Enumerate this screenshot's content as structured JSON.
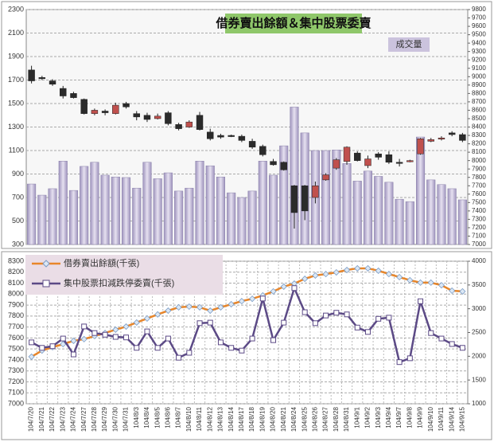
{
  "chart_data": [
    {
      "type": "combo",
      "title": "借券賣出餘額＆集中股票委賣",
      "categories": [
        "104/7/20",
        "104/7/21",
        "104/7/22",
        "104/7/23",
        "104/7/24",
        "104/7/27",
        "104/7/28",
        "104/7/29",
        "104/7/30",
        "104/7/31",
        "104/8/3",
        "104/8/4",
        "104/8/5",
        "104/8/6",
        "104/8/7",
        "104/8/10",
        "104/8/11",
        "104/8/12",
        "104/8/13",
        "104/8/14",
        "104/8/17",
        "104/8/18",
        "104/8/19",
        "104/8/20",
        "104/8/21",
        "104/8/24",
        "104/8/25",
        "104/8/26",
        "104/8/27",
        "104/8/28",
        "104/8/31",
        "104/9/1",
        "104/9/2",
        "104/9/3",
        "104/9/4",
        "104/9/7",
        "104/9/8",
        "104/9/9",
        "104/9/10",
        "104/9/11",
        "104/9/14",
        "104/9/15"
      ],
      "series": [
        {
          "name": "成交量",
          "type": "bar",
          "color": "#c8c0da",
          "values": [
            815,
            720,
            775,
            1010,
            760,
            965,
            1000,
            890,
            875,
            870,
            780,
            1000,
            860,
            910,
            755,
            780,
            1010,
            970,
            875,
            740,
            700,
            755,
            1010,
            890,
            1140,
            1470,
            1250,
            1100,
            1100,
            1105,
            990,
            840,
            925,
            880,
            830,
            685,
            665,
            1215,
            850,
            810,
            775,
            680
          ]
        },
        {
          "type": "candlestick",
          "axis": "y2",
          "up_color": "#c0504d",
          "down_color": "#2b2b2b",
          "open": [
            9080,
            8990,
            8950,
            8860,
            8800,
            8730,
            8560,
            8590,
            8560,
            8680,
            8560,
            8540,
            8500,
            8570,
            8430,
            8400,
            8540,
            8340,
            8300,
            8300,
            8290,
            8230,
            8170,
            7990,
            7980,
            7700,
            7700,
            7560,
            7770,
            7910,
            7990,
            8090,
            7940,
            8080,
            8070,
            7980,
            7990,
            8080,
            8230,
            8260,
            8330,
            8310
          ],
          "high": [
            9130,
            9010,
            8970,
            8890,
            8820,
            8740,
            8620,
            8610,
            8690,
            8700,
            8590,
            8570,
            8560,
            8590,
            8450,
            8480,
            8580,
            8380,
            8320,
            8310,
            8310,
            8260,
            8190,
            8020,
            7990,
            7710,
            7710,
            7750,
            7850,
            8030,
            8170,
            8110,
            8060,
            8100,
            8110,
            8020,
            8010,
            8270,
            8270,
            8290,
            8350,
            8330
          ],
          "low": [
            8920,
            8960,
            8890,
            8740,
            8740,
            8550,
            8540,
            8540,
            8550,
            8620,
            8480,
            8460,
            8490,
            8420,
            8360,
            8390,
            8360,
            8240,
            8260,
            8280,
            8220,
            8140,
            8050,
            7940,
            7880,
            7190,
            7290,
            7490,
            7760,
            7890,
            7950,
            7990,
            7910,
            8010,
            7960,
            7930,
            7980,
            8070,
            8220,
            8240,
            8290,
            8220
          ],
          "close": [
            8950,
            8980,
            8910,
            8770,
            8750,
            8560,
            8600,
            8570,
            8660,
            8640,
            8520,
            8490,
            8530,
            8440,
            8380,
            8460,
            8370,
            8260,
            8280,
            8290,
            8240,
            8160,
            8070,
            7950,
            7890,
            7380,
            7400,
            7700,
            7830,
            8010,
            8160,
            8000,
            8020,
            8040,
            7980,
            7970,
            8000,
            8260,
            8250,
            8270,
            8310,
            8240
          ]
        }
      ],
      "ylim": [
        300,
        2300
      ],
      "yticks": [
        300,
        500,
        700,
        900,
        1100,
        1300,
        1500,
        1700,
        1900,
        2100,
        2300
      ],
      "y2lim": [
        7000,
        9800
      ],
      "y2ticks": [
        7000,
        7100,
        7200,
        7300,
        7400,
        7500,
        7600,
        7700,
        7800,
        7900,
        8000,
        8100,
        8200,
        8300,
        8400,
        8500,
        8600,
        8700,
        8800,
        8900,
        9000,
        9100,
        9200,
        9300,
        9400,
        9500,
        9600,
        9700,
        9800
      ],
      "grid": true
    },
    {
      "type": "line",
      "series": [
        {
          "name": "借券賣出餘額(千張)",
          "color": "#e8862a",
          "axis": "y2",
          "marker": "diamond",
          "values": [
            1990,
            2120,
            2190,
            2255,
            2325,
            2360,
            2425,
            2490,
            2560,
            2625,
            2710,
            2795,
            2880,
            2960,
            3030,
            3045,
            3030,
            2960,
            3030,
            3095,
            3160,
            3210,
            3280,
            3365,
            3465,
            3530,
            3630,
            3700,
            3730,
            3765,
            3815,
            3850,
            3850,
            3800,
            3730,
            3665,
            3600,
            3550,
            3550,
            3495,
            3380,
            3365
          ]
        },
        {
          "name": "集中股票扣減跌停委賣(千張)",
          "color": "#5c4a86",
          "marker": "square",
          "values": [
            7560,
            7510,
            7525,
            7595,
            7450,
            7705,
            7645,
            7630,
            7610,
            7605,
            7510,
            7660,
            7510,
            7595,
            7420,
            7465,
            7735,
            7740,
            7560,
            7510,
            7485,
            7595,
            7960,
            7580,
            7740,
            8055,
            7835,
            7735,
            7805,
            7830,
            7815,
            7695,
            7655,
            7775,
            7785,
            7380,
            7415,
            7935,
            7645,
            7595,
            7545,
            7510
          ]
        }
      ],
      "ylim": [
        7000,
        8300
      ],
      "yticks": [
        7000,
        7100,
        7200,
        7300,
        7400,
        7500,
        7600,
        7700,
        7800,
        7900,
        8000,
        8100,
        8200,
        8300
      ],
      "y2lim": [
        1000,
        4000
      ],
      "y2ticks": [
        1000,
        1500,
        2000,
        2500,
        3000,
        3500,
        4000
      ],
      "grid": true
    }
  ]
}
